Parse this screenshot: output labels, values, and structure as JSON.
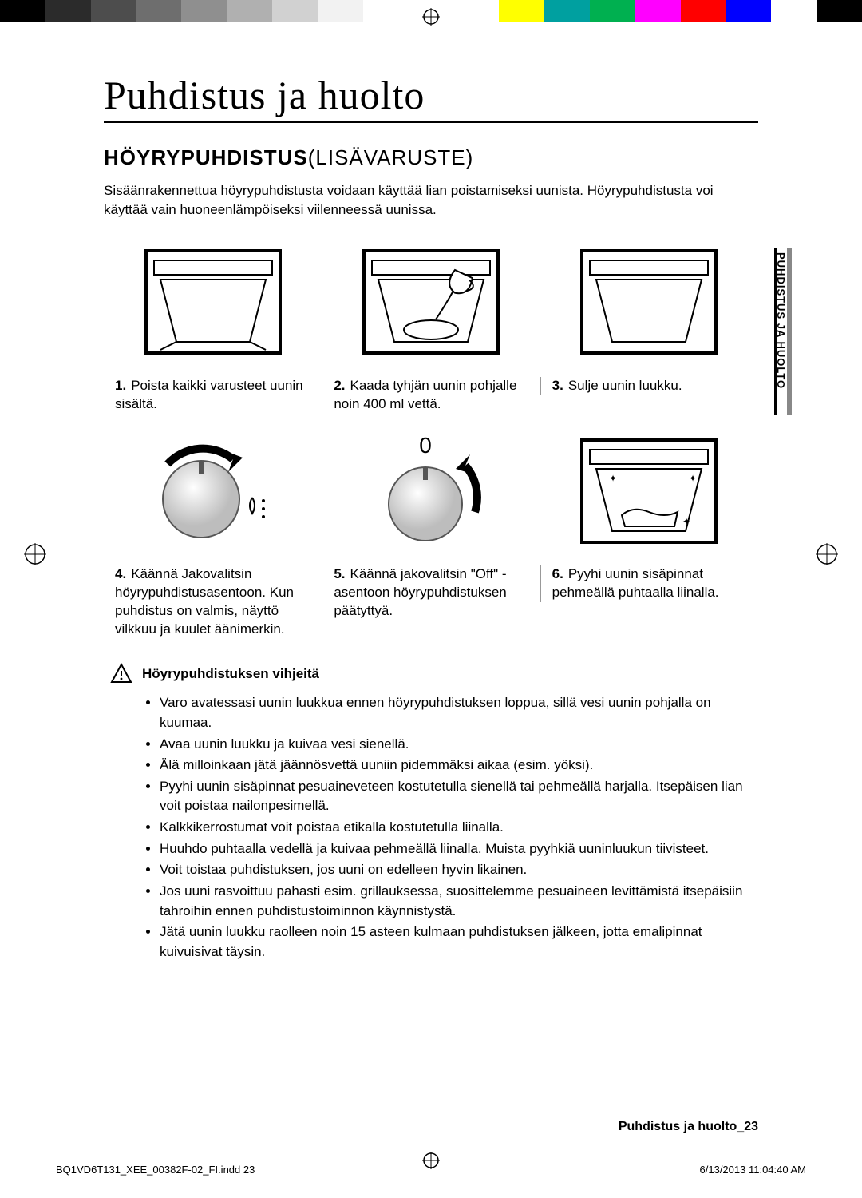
{
  "color_bar": [
    "#000000",
    "#2b2b2b",
    "#4d4d4d",
    "#6e6e6e",
    "#8f8f8f",
    "#b0b0b0",
    "#d1d1d1",
    "#f2f2f2",
    "#ffffff",
    "#ffffff",
    "#ffffff",
    "#ffff00",
    "#00a0a0",
    "#00b050",
    "#ff00ff",
    "#ff0000",
    "#0000ff",
    "#ffffff",
    "#000000"
  ],
  "title": "Puhdistus ja huolto",
  "section_bold": "HÖYRYPUHDISTUS",
  "section_light": "(LISÄVARUSTE)",
  "intro": "Sisäänrakennettua höyrypuhdistusta voidaan käyttää lian poistamiseksi uunista. Höyrypuhdistusta voi käyttää vain huoneenlämpöiseksi viilenneessä uunissa.",
  "side_tab": "PUHDISTUS JA HUOLTO",
  "steps": [
    {
      "n": "1.",
      "text": "Poista kaikki varusteet uunin sisältä."
    },
    {
      "n": "2.",
      "text": "Kaada tyhjän uunin pohjalle noin 400 ml vettä."
    },
    {
      "n": "3.",
      "text": "Sulje uunin luukku."
    },
    {
      "n": "4.",
      "text": "Käännä Jakovalitsin höyrypuhdistusasentoon. Kun puhdistus on valmis, näyttö vilkkuu ja kuulet äänimerkin."
    },
    {
      "n": "5.",
      "text": "Käännä jakovalitsin \"Off\" -asentoon höyrypuhdistuksen päätyttyä."
    },
    {
      "n": "6.",
      "text": "Pyyhi uunin sisäpinnat pehmeällä puhtaalla liinalla."
    }
  ],
  "tips_title": "Höyrypuhdistuksen vihjeitä",
  "tips": [
    "Varo avatessasi uunin luukkua ennen höyrypuhdistuksen loppua, sillä vesi uunin pohjalla on kuumaa.",
    "Avaa uunin luukku ja kuivaa vesi sienellä.",
    "Älä milloinkaan jätä jäännösvettä uuniin pidemmäksi aikaa (esim. yöksi).",
    "Pyyhi uunin sisäpinnat pesuaineveteen kostutetulla sienellä tai pehmeällä harjalla. Itsepäisen lian voit poistaa nailonpesimellä.",
    "Kalkkikerrostumat voit poistaa etikalla kostutetulla liinalla.",
    "Huuhdo puhtaalla vedellä ja kuivaa pehmeällä liinalla. Muista pyyhkiä uuninluukun tiivisteet.",
    "Voit toistaa puhdistuksen, jos uuni on edelleen hyvin likainen.",
    "Jos uuni rasvoittuu pahasti esim. grillauksessa, suosittelemme pesuaineen levittämistä itsepäisiin tahroihin ennen puhdistustoiminnon käynnistystä.",
    "Jätä uunin luukku raolleen noin 15 asteen kulmaan puhdistuksen jälkeen, jotta emalipinnat kuivuisivat täysin."
  ],
  "footer_right": "Puhdistus ja huolto_23",
  "print_left": "BQ1VD6T131_XEE_00382F-02_FI.indd   23",
  "print_right": "6/13/2013   11:04:40 AM"
}
